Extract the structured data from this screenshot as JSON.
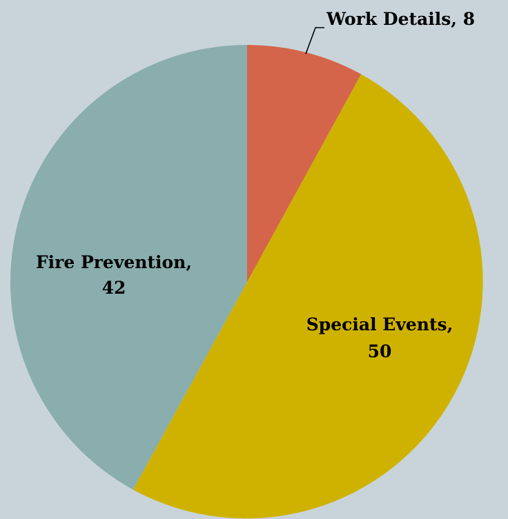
{
  "background": "#c8d4da",
  "chart_data": {
    "type": "pie",
    "title": "",
    "start": "top",
    "direction": "clockwise",
    "slices": [
      {
        "label": "Work Details",
        "value": 8,
        "color": "#d4654a",
        "label_text": "Work Details, 8"
      },
      {
        "label": "Special Events",
        "value": 50,
        "color": "#cfb200",
        "label_line1": "Special Events,",
        "label_line2": "50"
      },
      {
        "label": "Fire Prevention",
        "value": 42,
        "color": "#8aadae",
        "label_line1": "Fire Prevention,",
        "label_line2": "42"
      }
    ]
  }
}
